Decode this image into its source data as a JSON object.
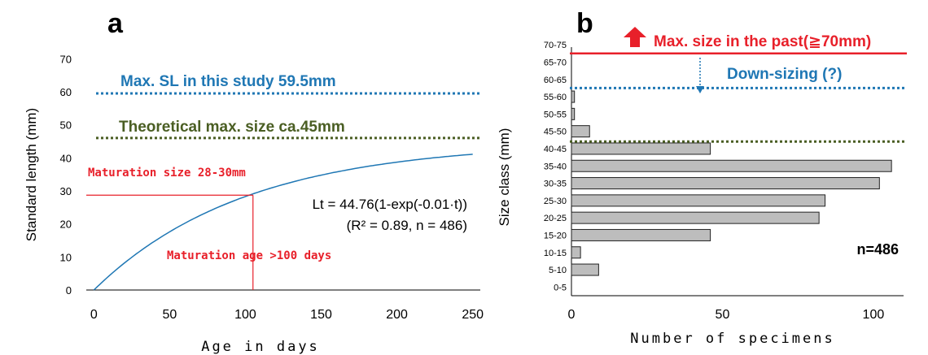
{
  "colors": {
    "blue": "#1f77b4",
    "olive": "#4a5e23",
    "red": "#e8202a",
    "bar_fill": "#bdbdbd",
    "bar_stroke": "#222222"
  },
  "chart_data": [
    {
      "type": "line",
      "panel_label": "a",
      "title": "",
      "xlabel": "Age in days",
      "ylabel": "Standard length (mm)",
      "xlim": [
        -5,
        255
      ],
      "ylim": [
        0,
        74
      ],
      "x_ticks": [
        0,
        50,
        100,
        150,
        200,
        250
      ],
      "y_ticks": [
        0,
        10,
        20,
        30,
        40,
        50,
        60,
        70
      ],
      "curve": {
        "Linf": 44.76,
        "k": 0.01,
        "x_start": 0,
        "x_end": 250
      },
      "equation": "Lt = 44.76(1-exp(-0.01·t))",
      "fit_stats": "(R² = 0.89, n = 486)",
      "ref_lines": [
        {
          "y": 59.5,
          "label": "Max. SL in this study 59.5mm",
          "color": "#1f77b4"
        },
        {
          "y": 46,
          "label": "Theoretical max. size ca.45mm",
          "color": "#4a5e23"
        }
      ],
      "maturation": {
        "size_y": 28.7,
        "age_x": 105,
        "size_label": "Maturation size 28-30mm",
        "age_label": "Maturation age >100 days"
      }
    },
    {
      "type": "bar",
      "orientation": "horizontal",
      "panel_label": "b",
      "title": "",
      "xlabel": "Number of specimens",
      "ylabel": "Size class (mm)",
      "xlim": [
        0,
        110
      ],
      "x_ticks": [
        0,
        50,
        100
      ],
      "categories": [
        "0-5",
        "5-10",
        "10-15",
        "15-20",
        "20-25",
        "25-30",
        "30-35",
        "35-40",
        "40-45",
        "45-50",
        "50-55",
        "55-60",
        "60-65",
        "65-70",
        "70-75"
      ],
      "values": [
        0,
        9,
        3,
        46,
        82,
        84,
        102,
        106,
        46,
        6,
        1,
        1,
        0,
        0,
        0
      ],
      "n_label": "n=486",
      "past_max_label": "Max. size in the past(≧70mm)",
      "downsizing_label": "Down-sizing (?)",
      "ref_lines": [
        {
          "category_boundary": 14,
          "color": "#e8202a"
        },
        {
          "category_boundary": 12,
          "color": "#1f77b4"
        },
        {
          "category_boundary": 9,
          "color": "#4a5e23"
        }
      ]
    }
  ]
}
